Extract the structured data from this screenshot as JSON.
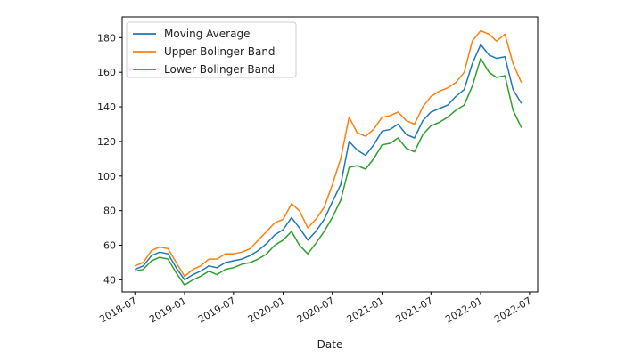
{
  "chart_data": {
    "type": "line",
    "title": "",
    "xlabel": "Date",
    "ylabel": "",
    "x_ticks": [
      "2018-07",
      "2019-01",
      "2019-07",
      "2020-01",
      "2020-07",
      "2021-01",
      "2021-07",
      "2022-01",
      "2022-07"
    ],
    "y_ticks": [
      40,
      60,
      80,
      100,
      120,
      140,
      160,
      180
    ],
    "xlim": [
      "2018-05-15",
      "2022-07-31"
    ],
    "ylim": [
      33,
      192
    ],
    "legend_position": "upper-left",
    "grid": false,
    "x": [
      "2018-07-01",
      "2018-08-01",
      "2018-09-01",
      "2018-10-01",
      "2018-11-01",
      "2018-12-01",
      "2019-01-01",
      "2019-02-01",
      "2019-03-01",
      "2019-04-01",
      "2019-05-01",
      "2019-06-01",
      "2019-07-01",
      "2019-08-01",
      "2019-09-01",
      "2019-10-01",
      "2019-11-01",
      "2019-12-01",
      "2020-01-01",
      "2020-02-01",
      "2020-03-01",
      "2020-04-01",
      "2020-05-01",
      "2020-06-01",
      "2020-07-01",
      "2020-08-01",
      "2020-09-01",
      "2020-10-01",
      "2020-11-01",
      "2020-12-01",
      "2021-01-01",
      "2021-02-01",
      "2021-03-01",
      "2021-04-01",
      "2021-05-01",
      "2021-06-01",
      "2021-07-01",
      "2021-08-01",
      "2021-09-01",
      "2021-10-01",
      "2021-11-01",
      "2021-12-01",
      "2022-01-01",
      "2022-02-01",
      "2022-03-01",
      "2022-04-01",
      "2022-05-01",
      "2022-06-01"
    ],
    "series": [
      {
        "name": "Moving Average",
        "color": "#1f77b4",
        "values": [
          46,
          48,
          54,
          56,
          55,
          47,
          40,
          43,
          45,
          48,
          47,
          50,
          51,
          52,
          54,
          57,
          61,
          66,
          69,
          76,
          70,
          63,
          68,
          75,
          85,
          95,
          120,
          115,
          112,
          118,
          126,
          127,
          130,
          124,
          122,
          132,
          137,
          139,
          141,
          146,
          150,
          165,
          176,
          170,
          168,
          169,
          150,
          142
        ]
      },
      {
        "name": "Upper Bolinger Band",
        "color": "#ff7f0e",
        "values": [
          48,
          50,
          57,
          59,
          58,
          50,
          42,
          46,
          48,
          52,
          52,
          55,
          55,
          56,
          58,
          63,
          68,
          73,
          75,
          84,
          80,
          70,
          75,
          82,
          95,
          110,
          134,
          125,
          123,
          127,
          134,
          135,
          137,
          132,
          130,
          140,
          146,
          149,
          151,
          154,
          160,
          178,
          184,
          182,
          178,
          182,
          165,
          154
        ]
      },
      {
        "name": "Lower Bolinger Band",
        "color": "#2ca02c",
        "values": [
          45,
          46,
          51,
          53,
          52,
          44,
          37,
          40,
          42,
          45,
          43,
          46,
          47,
          49,
          50,
          52,
          55,
          60,
          63,
          68,
          60,
          55,
          61,
          68,
          76,
          86,
          105,
          106,
          104,
          110,
          118,
          119,
          122,
          116,
          114,
          124,
          129,
          131,
          134,
          138,
          141,
          152,
          168,
          160,
          157,
          158,
          138,
          128
        ]
      }
    ]
  }
}
